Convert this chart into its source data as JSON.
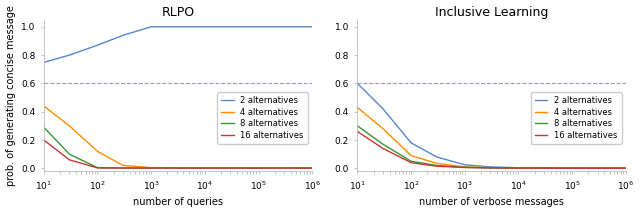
{
  "title_left": "RLPO",
  "title_right": "Inclusive Learning",
  "xlabel_left": "number of queries",
  "xlabel_right": "number of verbose messages",
  "ylabel": "prob. of generating concise message",
  "xlim": [
    10,
    1000000
  ],
  "ylim": [
    -0.02,
    1.05
  ],
  "yticks": [
    0.0,
    0.2,
    0.4,
    0.6,
    0.8,
    1.0
  ],
  "hline_y": 0.6,
  "hline_color": "#8888cc",
  "legend_labels": [
    "2 alternatives",
    "4 alternatives",
    "8 alternatives",
    "16 alternatives"
  ],
  "line_colors": [
    "#5588cc",
    "#ff8c00",
    "#339933",
    "#cc3333"
  ],
  "rlpo": {
    "x": [
      10,
      30,
      100,
      300,
      1000,
      3000,
      10000,
      100000,
      1000000
    ],
    "y_2alt": [
      0.748,
      0.8,
      0.87,
      0.94,
      1.0,
      1.0,
      1.0,
      1.0,
      1.0
    ],
    "y_4alt": [
      0.44,
      0.3,
      0.12,
      0.02,
      0.005,
      0.002,
      0.002,
      0.002,
      0.002
    ],
    "y_8alt": [
      0.29,
      0.1,
      0.005,
      0.002,
      0.002,
      0.002,
      0.002,
      0.002,
      0.002
    ],
    "y_16alt": [
      0.2,
      0.06,
      0.003,
      0.002,
      0.002,
      0.002,
      0.002,
      0.002,
      0.002
    ]
  },
  "inclusive": {
    "x": [
      10,
      30,
      100,
      300,
      1000,
      3000,
      10000,
      100000,
      1000000
    ],
    "y_2alt": [
      0.6,
      0.42,
      0.18,
      0.08,
      0.025,
      0.01,
      0.004,
      0.002,
      0.001
    ],
    "y_4alt": [
      0.43,
      0.28,
      0.09,
      0.035,
      0.01,
      0.005,
      0.002,
      0.001,
      0.001
    ],
    "y_8alt": [
      0.3,
      0.17,
      0.05,
      0.02,
      0.007,
      0.003,
      0.002,
      0.001,
      0.001
    ],
    "y_16alt": [
      0.26,
      0.14,
      0.04,
      0.015,
      0.006,
      0.003,
      0.002,
      0.001,
      0.001
    ]
  },
  "background_color": "#ffffff",
  "figsize": [
    6.4,
    2.13
  ],
  "dpi": 100
}
